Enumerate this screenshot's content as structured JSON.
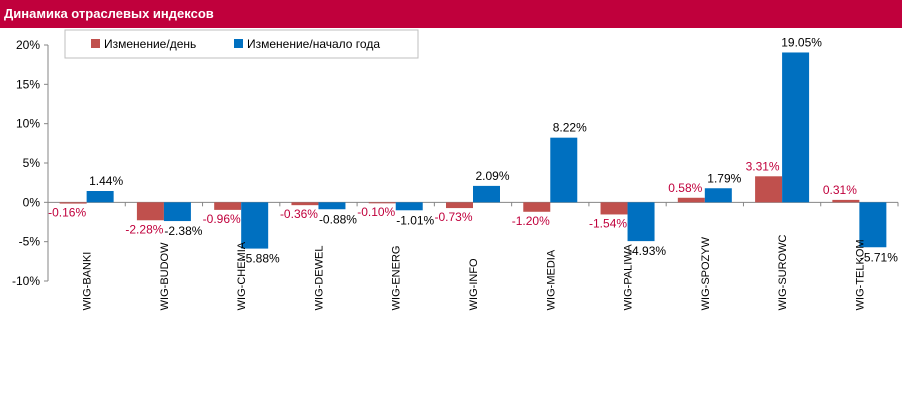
{
  "title": "Динамика отраслевых индексов",
  "colors": {
    "title_bg": "#c0003c",
    "day": "#c0504d",
    "ytd": "#0070c0",
    "day_label": "#c0003c",
    "ytd_label": "#000000"
  },
  "chart_data": {
    "type": "bar",
    "categories": [
      "WIG-BANKI",
      "WIG-BUDOW",
      "WIG-CHEMIA",
      "WIG-DEWEL",
      "WIG-ENERG",
      "WIG-INFO",
      "WIG-MEDIA",
      "WIG-PALIWA",
      "WIG-SPOZYW",
      "WIG-SUROWC",
      "WIG-TELKOM"
    ],
    "series": [
      {
        "name": "Изменение/день",
        "values": [
          -0.16,
          -2.28,
          -0.96,
          -0.36,
          -0.1,
          -0.73,
          -1.2,
          -1.54,
          0.58,
          3.31,
          0.31
        ],
        "labels": [
          "-0.16%",
          "-2.28%",
          "-0.96%",
          "-0.36%",
          "-0.10%",
          "-0.73%",
          "-1.20%",
          "-1.54%",
          "0.58%",
          "3.31%",
          "0.31%"
        ]
      },
      {
        "name": "Изменение/начало года",
        "values": [
          1.44,
          -2.38,
          -5.88,
          -0.88,
          -1.01,
          2.09,
          8.22,
          -4.93,
          1.79,
          19.05,
          -5.71
        ],
        "labels": [
          "1.44%",
          "-2.38%",
          "-5.88%",
          "-0.88%",
          "-1.01%",
          "2.09%",
          "8.22%",
          "-4.93%",
          "1.79%",
          "19.05%",
          "-5.71%"
        ]
      }
    ],
    "yticks": [
      "20%",
      "15%",
      "10%",
      "5%",
      "0%",
      "-5%",
      "-10%"
    ],
    "ylim": [
      -10,
      20
    ],
    "legend": "top-left"
  }
}
